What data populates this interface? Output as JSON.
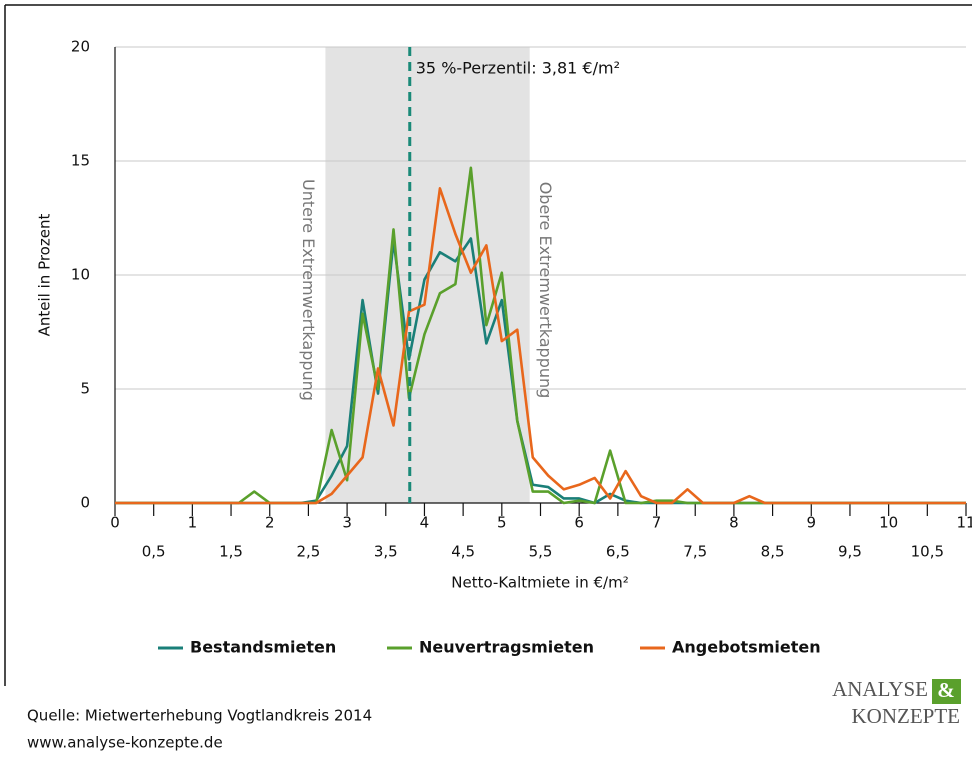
{
  "chart_data": {
    "type": "line",
    "x": [
      0,
      1.6,
      1.8,
      2.0,
      2.2,
      2.4,
      2.6,
      2.8,
      3.0,
      3.2,
      3.4,
      3.6,
      3.8,
      4.0,
      4.2,
      4.4,
      4.6,
      4.8,
      5.0,
      5.2,
      5.4,
      5.6,
      5.8,
      6.0,
      6.2,
      6.4,
      6.6,
      6.8,
      7.0,
      7.2,
      7.4,
      7.6,
      7.8,
      8.0,
      8.2,
      8.4,
      11
    ],
    "series": [
      {
        "name": "Bestandsmieten",
        "color": "#1a7f78",
        "values": [
          0,
          0,
          0,
          0,
          0,
          0,
          0.1,
          1.2,
          2.5,
          8.9,
          4.8,
          11.5,
          6.3,
          9.8,
          11.0,
          10.6,
          11.6,
          7.0,
          8.9,
          3.6,
          0.8,
          0.7,
          0.2,
          0.2,
          0,
          0.4,
          0.1,
          0,
          0,
          0,
          0,
          0,
          0,
          0,
          0,
          0,
          0
        ]
      },
      {
        "name": "Neuvertragsmieten",
        "color": "#5aa02c",
        "values": [
          0,
          0,
          0.5,
          0,
          0,
          0,
          0,
          3.2,
          1.0,
          8.3,
          5.0,
          12.0,
          4.6,
          7.4,
          9.2,
          9.6,
          14.7,
          7.8,
          10.1,
          3.6,
          0.5,
          0.5,
          0,
          0.1,
          0,
          2.3,
          0,
          0,
          0.1,
          0.1,
          0,
          0,
          0,
          0,
          0,
          0,
          0
        ]
      },
      {
        "name": "Angebotsmieten",
        "color": "#e8671c",
        "values": [
          0,
          0,
          0,
          0,
          0,
          0,
          0,
          0.4,
          1.2,
          2.0,
          5.9,
          3.4,
          8.4,
          8.7,
          13.8,
          11.8,
          10.1,
          11.3,
          7.1,
          7.6,
          2.0,
          1.2,
          0.6,
          0.8,
          1.1,
          0.2,
          1.4,
          0.3,
          0,
          0,
          0.6,
          0,
          0,
          0,
          0.3,
          0,
          0
        ]
      }
    ],
    "xlim": [
      0,
      11
    ],
    "ylim": [
      0,
      20
    ],
    "xticks": [
      0,
      {
        "value": 0.5,
        "label": "0,5"
      },
      1,
      {
        "value": 1.5,
        "label": "1,5"
      },
      2,
      {
        "value": 2.5,
        "label": "2,5"
      },
      3,
      {
        "value": 3.5,
        "label": "3,5"
      },
      4,
      {
        "value": 4.5,
        "label": "4,5"
      },
      5,
      {
        "value": 5.5,
        "label": "5,5"
      },
      6,
      {
        "value": 6.5,
        "label": "6,5"
      },
      7,
      {
        "value": 7.5,
        "label": "7,5"
      },
      8,
      {
        "value": 8.5,
        "label": "8,5"
      },
      9,
      {
        "value": 9.5,
        "label": "9,5"
      },
      10,
      {
        "value": 10.5,
        "label": "10,5"
      },
      11
    ],
    "yticks": [
      0,
      5,
      10,
      15,
      20
    ],
    "grid": true,
    "x_label": "Netto-Kaltmiete in €/m²",
    "y_label": "Anteil in Prozent",
    "shaded_region": {
      "from": 2.72,
      "to": 5.36,
      "color": "#e3e3e3",
      "labels": [
        "Untere Extremwertkappung",
        "Obere Extremwertkappung"
      ]
    },
    "marker_line": {
      "x": 3.81,
      "color": "#1a8a78",
      "label": "35 %-Perzentil: 3,81 €/m²"
    }
  },
  "footer": {
    "source": "Quelle: Mietwerterhebung Vogtlandkreis 2014",
    "url": "www.analyse-konzepte.de",
    "logo": [
      "ANALYSE",
      "&",
      "KONZEPTE"
    ]
  }
}
